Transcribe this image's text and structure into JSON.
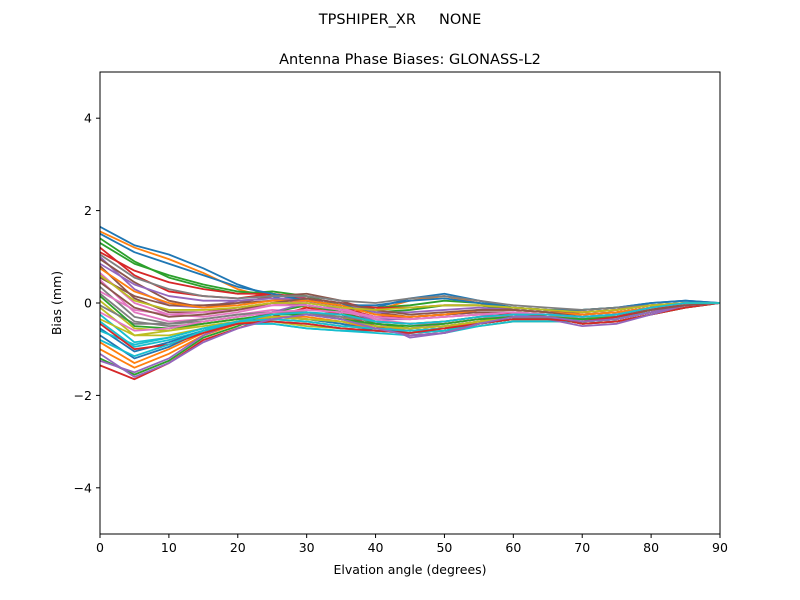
{
  "figure": {
    "suptitle": "TPSHIPER_XR     NONE"
  },
  "chart_data": {
    "type": "line",
    "title": "Antenna Phase Biases: GLONASS-L2",
    "xlabel": "Elvation angle (degrees)",
    "ylabel": "Bias (mm)",
    "xlim": [
      0,
      90
    ],
    "ylim": [
      -5,
      5
    ],
    "xticks": [
      0,
      10,
      20,
      30,
      40,
      50,
      60,
      70,
      80,
      90
    ],
    "yticks": [
      -4,
      -2,
      0,
      2,
      4
    ],
    "xtick_labels": [
      "0",
      "10",
      "20",
      "30",
      "40",
      "50",
      "60",
      "70",
      "80",
      "90"
    ],
    "ytick_labels": [
      "−4",
      "−2",
      "0",
      "2",
      "4"
    ],
    "grid": false,
    "legend": "none",
    "palette": [
      "#1f77b4",
      "#ff7f0e",
      "#2ca02c",
      "#d62728",
      "#9467bd",
      "#8c564b",
      "#e377c2",
      "#7f7f7f",
      "#bcbd22",
      "#17becf"
    ],
    "x": [
      0,
      5,
      10,
      15,
      20,
      25,
      30,
      35,
      40,
      45,
      50,
      55,
      60,
      65,
      70,
      75,
      80,
      85,
      90
    ],
    "series": [
      {
        "values": [
          1.65,
          1.25,
          1.05,
          0.75,
          0.4,
          0.15,
          -0.05,
          -0.15,
          -0.1,
          0.1,
          0.2,
          0.05,
          -0.1,
          -0.15,
          -0.15,
          -0.1,
          0.0,
          0.05,
          0.0
        ]
      },
      {
        "values": [
          1.55,
          1.2,
          0.95,
          0.65,
          0.3,
          0.1,
          -0.1,
          -0.2,
          -0.15,
          0.05,
          0.15,
          0.0,
          -0.15,
          -0.2,
          -0.2,
          -0.15,
          -0.05,
          0.0,
          0.0
        ]
      },
      {
        "values": [
          1.4,
          0.9,
          0.55,
          0.35,
          0.2,
          0.25,
          0.15,
          -0.05,
          -0.2,
          -0.15,
          -0.05,
          -0.05,
          -0.15,
          -0.2,
          -0.25,
          -0.2,
          -0.1,
          0.0,
          0.0
        ]
      },
      {
        "values": [
          1.2,
          0.6,
          0.25,
          0.15,
          0.1,
          0.2,
          0.1,
          -0.1,
          -0.3,
          -0.3,
          -0.25,
          -0.2,
          -0.25,
          -0.3,
          -0.35,
          -0.3,
          -0.15,
          -0.05,
          0.0
        ]
      },
      {
        "values": [
          1.0,
          0.3,
          -0.05,
          -0.1,
          0.05,
          0.1,
          0.05,
          -0.15,
          -0.35,
          -0.35,
          -0.3,
          -0.25,
          -0.3,
          -0.35,
          -0.4,
          -0.35,
          -0.2,
          -0.05,
          0.0
        ]
      },
      {
        "values": [
          0.8,
          0.1,
          -0.2,
          -0.2,
          -0.1,
          0.0,
          -0.05,
          -0.2,
          -0.4,
          -0.45,
          -0.4,
          -0.3,
          -0.25,
          -0.3,
          -0.45,
          -0.4,
          -0.25,
          -0.1,
          0.0
        ]
      },
      {
        "values": [
          0.5,
          -0.2,
          -0.4,
          -0.35,
          -0.25,
          -0.15,
          -0.2,
          -0.35,
          -0.5,
          -0.55,
          -0.45,
          -0.35,
          -0.3,
          -0.3,
          -0.4,
          -0.35,
          -0.2,
          -0.05,
          0.0
        ]
      },
      {
        "values": [
          0.2,
          -0.4,
          -0.5,
          -0.45,
          -0.35,
          -0.3,
          -0.35,
          -0.45,
          -0.55,
          -0.6,
          -0.55,
          -0.45,
          -0.35,
          -0.35,
          -0.35,
          -0.3,
          -0.15,
          0.0,
          0.0
        ]
      },
      {
        "values": [
          -0.1,
          -0.7,
          -0.7,
          -0.55,
          -0.4,
          -0.4,
          -0.5,
          -0.55,
          -0.6,
          -0.65,
          -0.6,
          -0.5,
          -0.4,
          -0.4,
          -0.4,
          -0.3,
          -0.15,
          0.0,
          0.0
        ]
      },
      {
        "values": [
          -0.4,
          -0.95,
          -0.8,
          -0.6,
          -0.45,
          -0.45,
          -0.55,
          -0.6,
          -0.65,
          -0.7,
          -0.65,
          -0.5,
          -0.4,
          -0.4,
          -0.4,
          -0.35,
          -0.2,
          -0.05,
          0.0
        ]
      },
      {
        "values": [
          -0.7,
          -1.2,
          -0.95,
          -0.6,
          -0.4,
          -0.3,
          -0.35,
          -0.45,
          -0.6,
          -0.65,
          -0.6,
          -0.45,
          -0.35,
          -0.35,
          -0.4,
          -0.35,
          -0.2,
          -0.05,
          0.0
        ]
      },
      {
        "values": [
          -1.0,
          -1.4,
          -1.1,
          -0.7,
          -0.45,
          -0.25,
          -0.2,
          -0.3,
          -0.5,
          -0.6,
          -0.55,
          -0.4,
          -0.3,
          -0.3,
          -0.4,
          -0.35,
          -0.2,
          -0.05,
          0.0
        ]
      },
      {
        "values": [
          -1.2,
          -1.55,
          -1.25,
          -0.75,
          -0.5,
          -0.2,
          -0.05,
          -0.2,
          -0.45,
          -0.55,
          -0.5,
          -0.4,
          -0.25,
          -0.3,
          -0.45,
          -0.4,
          -0.25,
          -0.1,
          0.0
        ]
      },
      {
        "values": [
          -1.35,
          -1.65,
          -1.3,
          -0.8,
          -0.55,
          -0.3,
          -0.1,
          -0.25,
          -0.5,
          -0.7,
          -0.65,
          -0.45,
          -0.25,
          -0.3,
          -0.45,
          -0.4,
          -0.25,
          -0.1,
          0.0
        ]
      },
      {
        "values": [
          -1.25,
          -1.5,
          -1.2,
          -0.7,
          -0.4,
          -0.2,
          0.0,
          -0.1,
          -0.4,
          -0.75,
          -0.65,
          -0.45,
          -0.25,
          -0.35,
          -0.5,
          -0.45,
          -0.25,
          -0.05,
          0.0
        ]
      },
      {
        "values": [
          0.95,
          0.45,
          0.05,
          -0.1,
          0.0,
          0.15,
          0.2,
          0.05,
          -0.2,
          -0.3,
          -0.25,
          -0.15,
          -0.1,
          -0.15,
          -0.25,
          -0.2,
          -0.1,
          0.0,
          0.0
        ]
      },
      {
        "values": [
          0.65,
          0.0,
          -0.25,
          -0.3,
          -0.2,
          -0.05,
          0.05,
          -0.1,
          -0.35,
          -0.45,
          -0.45,
          -0.35,
          -0.25,
          -0.25,
          -0.35,
          -0.3,
          -0.15,
          -0.05,
          0.0
        ]
      },
      {
        "values": [
          0.35,
          -0.3,
          -0.45,
          -0.4,
          -0.3,
          -0.2,
          -0.2,
          -0.35,
          -0.5,
          -0.55,
          -0.5,
          -0.4,
          -0.3,
          -0.3,
          -0.35,
          -0.3,
          -0.15,
          0.0,
          0.0
        ]
      },
      {
        "values": [
          0.05,
          -0.55,
          -0.6,
          -0.5,
          -0.4,
          -0.35,
          -0.4,
          -0.5,
          -0.55,
          -0.6,
          -0.55,
          -0.45,
          -0.35,
          -0.35,
          -0.4,
          -0.3,
          -0.15,
          0.0,
          0.0
        ]
      },
      {
        "values": [
          -0.25,
          -0.85,
          -0.75,
          -0.55,
          -0.45,
          -0.45,
          -0.55,
          -0.6,
          -0.6,
          -0.65,
          -0.6,
          -0.45,
          -0.35,
          -0.35,
          -0.4,
          -0.35,
          -0.15,
          0.0,
          0.0
        ]
      },
      {
        "values": [
          -0.55,
          -1.05,
          -0.85,
          -0.6,
          -0.45,
          -0.4,
          -0.45,
          -0.55,
          -0.6,
          -0.6,
          -0.55,
          -0.45,
          -0.35,
          -0.35,
          -0.4,
          -0.3,
          -0.15,
          0.0,
          0.0
        ]
      },
      {
        "values": [
          -0.85,
          -1.3,
          -1.0,
          -0.65,
          -0.45,
          -0.3,
          -0.3,
          -0.4,
          -0.55,
          -0.6,
          -0.55,
          -0.4,
          -0.3,
          -0.3,
          -0.35,
          -0.3,
          -0.15,
          0.0,
          0.0
        ]
      },
      {
        "values": [
          1.3,
          0.85,
          0.6,
          0.4,
          0.25,
          0.2,
          0.05,
          -0.05,
          -0.1,
          -0.05,
          0.05,
          0.0,
          -0.1,
          -0.15,
          -0.15,
          -0.1,
          -0.05,
          0.0,
          0.0
        ]
      },
      {
        "values": [
          1.1,
          0.7,
          0.45,
          0.3,
          0.2,
          0.2,
          0.1,
          0.0,
          -0.1,
          -0.1,
          -0.05,
          -0.05,
          -0.1,
          -0.15,
          -0.2,
          -0.15,
          -0.05,
          0.0,
          0.0
        ]
      },
      {
        "values": [
          0.85,
          0.4,
          0.15,
          0.05,
          0.05,
          0.1,
          0.1,
          0.0,
          -0.2,
          -0.2,
          -0.15,
          -0.1,
          -0.15,
          -0.2,
          -0.25,
          -0.2,
          -0.1,
          0.0,
          0.0
        ]
      },
      {
        "values": [
          0.55,
          0.15,
          -0.05,
          -0.05,
          0.0,
          0.05,
          0.05,
          -0.05,
          -0.25,
          -0.3,
          -0.25,
          -0.2,
          -0.2,
          -0.25,
          -0.3,
          -0.25,
          -0.1,
          0.0,
          0.0
        ]
      },
      {
        "values": [
          0.25,
          -0.15,
          -0.25,
          -0.2,
          -0.15,
          -0.05,
          -0.05,
          -0.15,
          -0.3,
          -0.35,
          -0.3,
          -0.25,
          -0.2,
          -0.25,
          -0.3,
          -0.25,
          -0.15,
          -0.05,
          0.0
        ]
      },
      {
        "values": [
          -0.05,
          -0.45,
          -0.45,
          -0.35,
          -0.25,
          -0.2,
          -0.2,
          -0.3,
          -0.4,
          -0.45,
          -0.4,
          -0.3,
          -0.25,
          -0.25,
          -0.3,
          -0.25,
          -0.1,
          0.0,
          0.0
        ]
      },
      {
        "values": [
          -0.35,
          -0.7,
          -0.6,
          -0.45,
          -0.35,
          -0.3,
          -0.35,
          -0.4,
          -0.5,
          -0.55,
          -0.5,
          -0.4,
          -0.3,
          -0.3,
          -0.35,
          -0.25,
          -0.1,
          0.0,
          0.0
        ]
      },
      {
        "values": [
          -0.6,
          -0.9,
          -0.75,
          -0.55,
          -0.4,
          -0.35,
          -0.4,
          -0.5,
          -0.55,
          -0.6,
          -0.55,
          -0.45,
          -0.35,
          -0.35,
          -0.35,
          -0.3,
          -0.15,
          0.0,
          0.0
        ]
      },
      {
        "values": [
          1.5,
          1.1,
          0.85,
          0.6,
          0.35,
          0.2,
          0.05,
          -0.05,
          -0.05,
          0.05,
          0.1,
          0.0,
          -0.1,
          -0.15,
          -0.15,
          -0.1,
          0.0,
          0.05,
          0.0
        ]
      },
      {
        "values": [
          0.75,
          0.25,
          0.0,
          -0.1,
          -0.05,
          0.05,
          0.05,
          -0.05,
          -0.25,
          -0.3,
          -0.25,
          -0.15,
          -0.15,
          -0.2,
          -0.25,
          -0.2,
          -0.1,
          0.0,
          0.0
        ]
      },
      {
        "values": [
          0.15,
          -0.5,
          -0.55,
          -0.45,
          -0.35,
          -0.25,
          -0.25,
          -0.35,
          -0.45,
          -0.5,
          -0.45,
          -0.35,
          -0.3,
          -0.3,
          -0.35,
          -0.3,
          -0.15,
          0.0,
          0.0
        ]
      },
      {
        "values": [
          -0.45,
          -1.0,
          -0.9,
          -0.65,
          -0.45,
          -0.4,
          -0.45,
          -0.55,
          -0.6,
          -0.65,
          -0.55,
          -0.45,
          -0.35,
          -0.35,
          -0.4,
          -0.3,
          -0.15,
          0.0,
          0.0
        ]
      },
      {
        "values": [
          -1.1,
          -1.6,
          -1.3,
          -0.85,
          -0.55,
          -0.35,
          -0.25,
          -0.35,
          -0.55,
          -0.7,
          -0.65,
          -0.45,
          -0.3,
          -0.3,
          -0.4,
          -0.35,
          -0.2,
          -0.05,
          0.0
        ]
      },
      {
        "values": [
          0.45,
          -0.1,
          -0.3,
          -0.25,
          -0.15,
          0.0,
          0.1,
          0.0,
          -0.15,
          -0.25,
          -0.2,
          -0.15,
          -0.15,
          -0.2,
          -0.3,
          -0.25,
          -0.15,
          -0.05,
          0.0
        ]
      },
      {
        "values": [
          -0.2,
          -0.6,
          -0.55,
          -0.4,
          -0.3,
          -0.2,
          -0.15,
          -0.2,
          -0.3,
          -0.35,
          -0.3,
          -0.25,
          -0.2,
          -0.25,
          -0.3,
          -0.25,
          -0.1,
          0.0,
          0.0
        ]
      },
      {
        "values": [
          1.05,
          0.55,
          0.3,
          0.15,
          0.1,
          0.15,
          0.15,
          0.05,
          0.0,
          0.1,
          0.15,
          0.05,
          -0.05,
          -0.1,
          -0.15,
          -0.1,
          -0.05,
          0.0,
          0.0
        ]
      },
      {
        "values": [
          0.6,
          0.05,
          -0.15,
          -0.15,
          -0.1,
          0.0,
          0.0,
          -0.1,
          -0.15,
          -0.1,
          -0.05,
          -0.05,
          -0.1,
          -0.15,
          -0.2,
          -0.15,
          -0.05,
          0.0,
          0.0
        ]
      },
      {
        "values": [
          -0.8,
          -1.15,
          -0.9,
          -0.6,
          -0.4,
          -0.25,
          -0.2,
          -0.25,
          -0.4,
          -0.45,
          -0.4,
          -0.3,
          -0.25,
          -0.25,
          -0.3,
          -0.25,
          -0.1,
          0.0,
          0.0
        ]
      }
    ]
  }
}
